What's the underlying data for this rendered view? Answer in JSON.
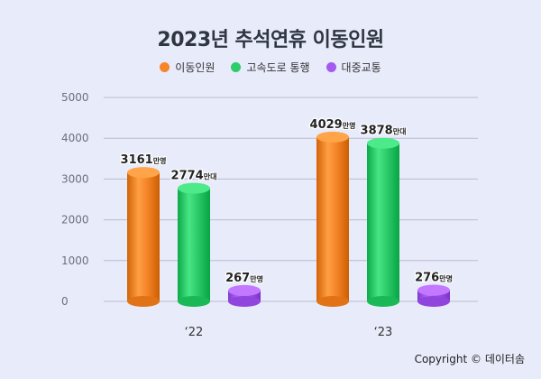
{
  "chart_data": {
    "type": "bar",
    "title": "2023년 추석연휴 이동인원",
    "categories": [
      "'22",
      "'23"
    ],
    "series": [
      {
        "name": "이동인원",
        "color": "#f5862a",
        "values": [
          3161,
          4029
        ],
        "unit": "만명"
      },
      {
        "name": "고속도로 통행",
        "color": "#2ecc6b",
        "values": [
          2774,
          3878
        ],
        "unit": "만대"
      },
      {
        "name": "대중교통",
        "color": "#a45af0",
        "values": [
          267,
          276
        ],
        "unit": "만명"
      }
    ],
    "yticks": [
      0,
      1000,
      2000,
      3000,
      4000,
      5000
    ],
    "ylim": [
      0,
      5000
    ],
    "grid": true,
    "legend_position": "top"
  },
  "copyright": "Copyright © 데이터솜"
}
